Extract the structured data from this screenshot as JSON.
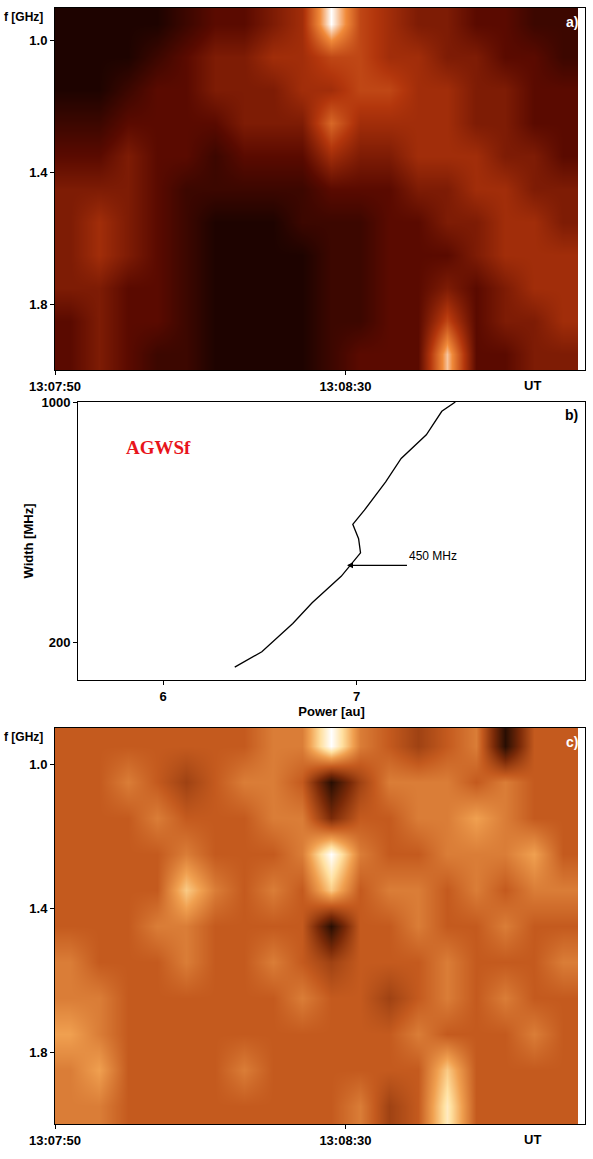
{
  "chart_data": [
    {
      "type": "heatmap",
      "panel": "a)",
      "x_label": "UT",
      "y_label": "f [GHz]",
      "x": [
        47272,
        47276,
        47280,
        47284,
        47288,
        47292,
        47296,
        47300,
        47304,
        47308,
        47312,
        47316,
        47320,
        47324,
        47328,
        47332,
        47336,
        47340
      ],
      "y": [
        0.95,
        1.05,
        1.15,
        1.25,
        1.35,
        1.45,
        1.55,
        1.65,
        1.75,
        1.85,
        1.95
      ],
      "z": [
        [
          1,
          1,
          1,
          1,
          2,
          3,
          3,
          4,
          5,
          10,
          6,
          5,
          4,
          4,
          3,
          3,
          2,
          2
        ],
        [
          1,
          1,
          1,
          2,
          3,
          4,
          4,
          5,
          5,
          6,
          6,
          5,
          5,
          4,
          4,
          3,
          3,
          2
        ],
        [
          1,
          1,
          2,
          3,
          3,
          4,
          4,
          4,
          5,
          5,
          6,
          6,
          5,
          5,
          4,
          4,
          3,
          3
        ],
        [
          2,
          2,
          3,
          3,
          3,
          3,
          4,
          4,
          4,
          7,
          5,
          5,
          5,
          5,
          4,
          4,
          3,
          3
        ],
        [
          3,
          3,
          4,
          3,
          3,
          2,
          3,
          3,
          3,
          5,
          4,
          4,
          5,
          5,
          5,
          4,
          4,
          3
        ],
        [
          4,
          4,
          4,
          3,
          2,
          2,
          2,
          2,
          2,
          3,
          3,
          3,
          4,
          4,
          5,
          5,
          4,
          4
        ],
        [
          4,
          5,
          4,
          3,
          2,
          1,
          1,
          1,
          2,
          2,
          2,
          3,
          3,
          4,
          4,
          5,
          5,
          4
        ],
        [
          4,
          5,
          4,
          3,
          2,
          1,
          1,
          1,
          1,
          2,
          2,
          3,
          3,
          3,
          4,
          5,
          5,
          5
        ],
        [
          4,
          4,
          3,
          3,
          2,
          1,
          1,
          1,
          1,
          2,
          2,
          3,
          3,
          4,
          3,
          4,
          5,
          5
        ],
        [
          3,
          4,
          3,
          3,
          2,
          1,
          1,
          1,
          1,
          2,
          2,
          3,
          3,
          6,
          3,
          4,
          4,
          5
        ],
        [
          3,
          4,
          3,
          2,
          2,
          1,
          1,
          1,
          1,
          2,
          3,
          3,
          3,
          9,
          3,
          3,
          4,
          4
        ]
      ],
      "zlim": [
        0,
        10
      ],
      "xlim": [
        47270,
        47343
      ],
      "ylim": [
        2.0,
        0.9
      ],
      "xticks": [
        {
          "value": 47270,
          "label": "13:07:50"
        },
        {
          "value": 47310,
          "label": "13:08:30"
        }
      ],
      "yticks": [
        {
          "value": 1,
          "label": "1.0"
        },
        1.4,
        1.8
      ]
    },
    {
      "type": "line",
      "panel": "b)",
      "x_label": "Power [au]",
      "y_label": "Width [MHz]",
      "x": [
        6.37,
        6.51,
        6.67,
        6.77,
        6.92,
        7.02,
        7.01,
        6.98,
        7.04,
        7.15,
        7.23,
        7.36,
        7.44,
        7.51
      ],
      "values": [
        118,
        169,
        263,
        332,
        420,
        498,
        545,
        593,
        640,
        734,
        812,
        891,
        969,
        1000
      ],
      "color": "#000000",
      "annotations": [
        {
          "text": "AGWSf",
          "color": "#e8141b"
        },
        {
          "text": "450 MHz",
          "x": 6.95,
          "y": 450
        }
      ],
      "xlim": [
        5.56,
        8.18
      ],
      "ylim": [
        75,
        1000
      ],
      "xticks": [
        6,
        7
      ],
      "yticks": [
        200,
        1000
      ]
    },
    {
      "type": "heatmap",
      "panel": "c)",
      "x_label": "UT",
      "y_label": "f [GHz]",
      "x": [
        47272,
        47276,
        47280,
        47284,
        47288,
        47292,
        47296,
        47300,
        47304,
        47308,
        47312,
        47316,
        47320,
        47324,
        47328,
        47332,
        47336,
        47340
      ],
      "y": [
        0.95,
        1.05,
        1.15,
        1.25,
        1.35,
        1.45,
        1.55,
        1.65,
        1.75,
        1.85,
        1.95
      ],
      "z": [
        [
          5,
          5,
          5,
          5,
          5,
          5,
          5,
          6,
          6,
          10,
          6,
          5,
          4,
          5,
          6,
          1,
          5,
          5
        ],
        [
          5,
          5,
          6,
          5,
          4,
          5,
          6,
          6,
          5,
          1,
          4,
          6,
          6,
          6,
          5,
          6,
          5,
          5
        ],
        [
          5,
          5,
          5,
          6,
          5,
          5,
          5,
          6,
          6,
          3,
          5,
          5,
          6,
          6,
          7,
          6,
          5,
          5
        ],
        [
          5,
          5,
          5,
          5,
          6,
          5,
          5,
          5,
          6,
          10,
          6,
          5,
          5,
          6,
          6,
          6,
          7,
          5
        ],
        [
          5,
          5,
          5,
          5,
          8,
          6,
          5,
          6,
          5,
          8,
          5,
          6,
          6,
          5,
          6,
          5,
          6,
          6
        ],
        [
          5,
          5,
          5,
          6,
          6,
          5,
          5,
          5,
          5,
          1,
          5,
          5,
          6,
          5,
          5,
          6,
          5,
          5
        ],
        [
          6,
          5,
          5,
          5,
          6,
          5,
          5,
          6,
          5,
          4,
          5,
          5,
          5,
          6,
          5,
          5,
          5,
          6
        ],
        [
          6,
          6,
          5,
          5,
          5,
          5,
          5,
          5,
          6,
          5,
          5,
          4,
          5,
          6,
          5,
          6,
          5,
          5
        ],
        [
          7,
          6,
          5,
          5,
          5,
          5,
          5,
          5,
          5,
          5,
          5,
          5,
          6,
          5,
          5,
          5,
          6,
          5
        ],
        [
          6,
          7,
          5,
          5,
          5,
          5,
          6,
          5,
          5,
          5,
          5,
          5,
          5,
          8,
          5,
          5,
          5,
          5
        ],
        [
          6,
          6,
          5,
          5,
          5,
          5,
          5,
          5,
          5,
          5,
          6,
          4,
          5,
          9,
          5,
          5,
          5,
          5
        ]
      ],
      "zlim": [
        0,
        10
      ],
      "xlim": [
        47270,
        47343
      ],
      "ylim": [
        2.0,
        0.9
      ],
      "xticks": [
        {
          "value": 47270,
          "label": "13:07:50"
        },
        {
          "value": 47310,
          "label": "13:08:30"
        }
      ],
      "yticks": [
        {
          "value": 1,
          "label": "1.0"
        },
        1.4,
        1.8
      ]
    }
  ]
}
